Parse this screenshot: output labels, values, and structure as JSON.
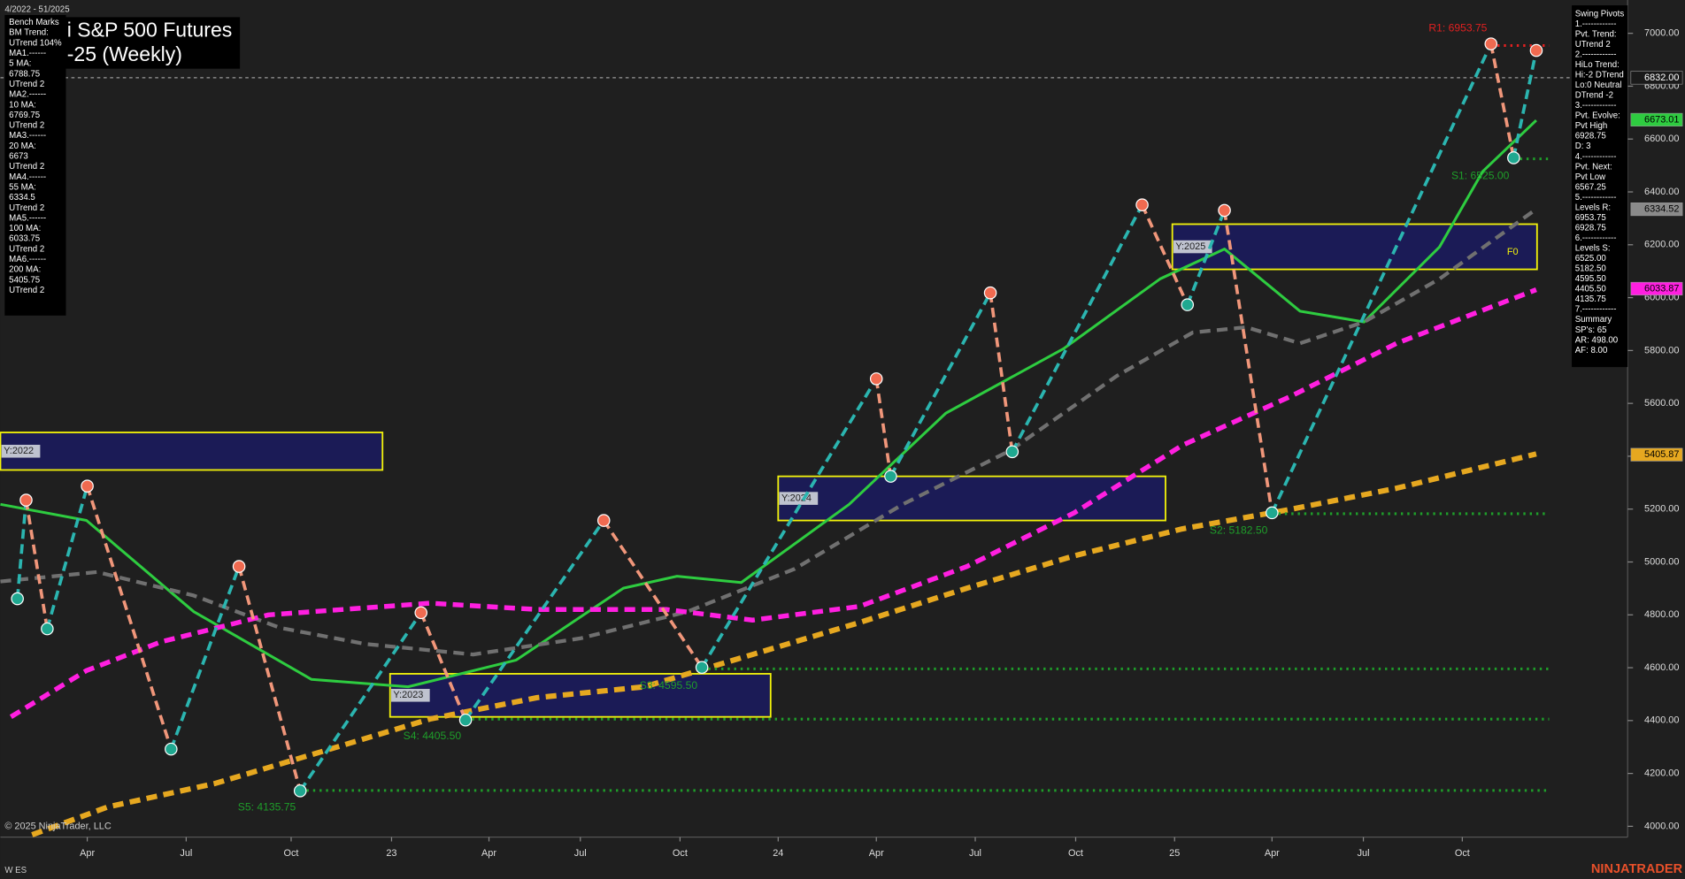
{
  "chart_data": {
    "type": "line",
    "title": "i S&P 500 Futures",
    "subtitle": "-25 (Weekly)",
    "date_range": "4/2022 - 51/2025",
    "xlim": [
      1.5,
      217
    ],
    "xticks": [
      {
        "value": 13,
        "label": "Apr"
      },
      {
        "value": 26.1,
        "label": "Jul"
      },
      {
        "value": 40,
        "label": "Oct"
      },
      {
        "value": 53.3,
        "label": "23"
      },
      {
        "value": 66.2,
        "label": "Apr"
      },
      {
        "value": 78.3,
        "label": "Jul"
      },
      {
        "value": 91.5,
        "label": "Oct"
      },
      {
        "value": 104.5,
        "label": "24"
      },
      {
        "value": 117.5,
        "label": "Apr"
      },
      {
        "value": 130.6,
        "label": "Jul"
      },
      {
        "value": 143.9,
        "label": "Oct"
      },
      {
        "value": 157,
        "label": "25"
      },
      {
        "value": 169.9,
        "label": "Apr"
      },
      {
        "value": 182,
        "label": "Jul"
      },
      {
        "value": 195.1,
        "label": "Oct"
      }
    ],
    "ylim": [
      3959,
      7126
    ],
    "yticks": [
      {
        "value": 4000,
        "label": "4000.00"
      },
      {
        "value": 4200,
        "label": "4200.00"
      },
      {
        "value": 4400,
        "label": "4400.00"
      },
      {
        "value": 4600,
        "label": "4600.00"
      },
      {
        "value": 4800,
        "label": "4800.00"
      },
      {
        "value": 5000,
        "label": "5000.00"
      },
      {
        "value": 5200,
        "label": "5200.00"
      },
      {
        "value": 5400,
        "label": "5400.00"
      },
      {
        "value": 5600,
        "label": "5600.00"
      },
      {
        "value": 5800,
        "label": "5800.00"
      },
      {
        "value": 6000,
        "label": "6000.00"
      },
      {
        "value": 6200,
        "label": "6200.00"
      },
      {
        "value": 6400,
        "label": "6400.00"
      },
      {
        "value": 6600,
        "label": "6600.00"
      },
      {
        "value": 6800,
        "label": "6800.00"
      },
      {
        "value": 7000,
        "label": "7000.00"
      }
    ],
    "zigzag": {
      "up_color": "#2bb5b0",
      "down_color": "#f0967a",
      "high_color": "#f06a50",
      "low_color": "#1fa890",
      "x": [
        3.75,
        4.9,
        7.7,
        13,
        24.1,
        33.1,
        41.2,
        57.2,
        63.1,
        81.4,
        94.4,
        117.5,
        119.4,
        132.6,
        135.5,
        152.7,
        158.7,
        163.6,
        169.9,
        198.9,
        201.9,
        204.9
      ],
      "values": [
        4861,
        5234,
        4747,
        5287,
        4292,
        4983,
        4134,
        4808,
        4402,
        5157,
        4601,
        5693,
        5324,
        6018,
        5417,
        6351,
        5973,
        6330,
        5186,
        6960,
        6529,
        6935
      ]
    },
    "series": [
      {
        "color": "#2ecc40",
        "dash": false,
        "width": 2.5,
        "x": [
          1.5,
          12.9,
          27.1,
          42.7,
          55.5,
          69.8,
          84.0,
          91.1,
          99.6,
          113.9,
          126.7,
          142.3,
          155.1,
          163.6,
          173.6,
          182.1,
          192.1,
          197.8,
          204.9
        ],
        "values": [
          5218,
          5157,
          4812,
          4556,
          4528,
          4629,
          4901,
          4946,
          4922,
          5218,
          5563,
          5807,
          6071,
          6184,
          5949,
          5908,
          6192,
          6477,
          6671
        ]
      },
      {
        "color": "#707070",
        "dash": true,
        "width": 3.5,
        "x": [
          1.5,
          14.3,
          27.1,
          38.5,
          49.8,
          64.1,
          78.3,
          92.5,
          106.7,
          121.0,
          135.2,
          149.4,
          159.4,
          166.5,
          173.6,
          182.1,
          192.1,
          204.9
        ],
        "values": [
          4926,
          4962,
          4873,
          4751,
          4690,
          4650,
          4711,
          4812,
          4974,
          5218,
          5421,
          5705,
          5868,
          5888,
          5827,
          5908,
          6071,
          6335
        ]
      },
      {
        "color": "#ff1fe0",
        "dash": true,
        "width": 4.5,
        "x": [
          2.9,
          12.9,
          22.8,
          37.0,
          58.4,
          72.6,
          89.7,
          101.1,
          115.3,
          129.5,
          143.7,
          158.0,
          172.2,
          186.4,
          204.9
        ],
        "values": [
          4414,
          4589,
          4698,
          4800,
          4844,
          4820,
          4820,
          4780,
          4832,
          4983,
          5186,
          5441,
          5624,
          5827,
          6030
        ]
      },
      {
        "color": "#e6a820",
        "dash": true,
        "width": 5,
        "x": [
          5.7,
          15.7,
          29.9,
          44.2,
          58.4,
          72.6,
          86.8,
          101.1,
          115.3,
          129.5,
          143.7,
          158.0,
          172.2,
          186.4,
          204.9
        ],
        "values": [
          3968,
          4073,
          4162,
          4284,
          4406,
          4487,
          4528,
          4650,
          4771,
          4901,
          5023,
          5125,
          5198,
          5279,
          5409
        ]
      }
    ],
    "levels": [
      {
        "label": "R1: 6953.75",
        "value": 6953.75,
        "x_start": 198.9,
        "color": "#e02020"
      },
      {
        "label": "S1: 6525.00",
        "value": 6525,
        "x_start": 201.9,
        "color": "#1f9e2a"
      },
      {
        "label": "S2: 5182.50",
        "value": 5182.5,
        "x_start": 169.9,
        "color": "#1f9e2a"
      },
      {
        "label": "S3: 4595.50",
        "value": 4595.5,
        "x_start": 94.4,
        "color": "#1f9e2a"
      },
      {
        "label": "S4: 4405.50",
        "value": 4405.5,
        "x_start": 63.1,
        "color": "#1f9e2a"
      },
      {
        "label": "S5: 4135.75",
        "value": 4135.75,
        "x_start": 41.2,
        "color": "#1f9e2a"
      }
    ],
    "year_boxes": [
      {
        "label": "Y:2022",
        "x": [
          1.5,
          52.1
        ],
        "y": [
          5348,
          5490
        ]
      },
      {
        "label": "Y:2023",
        "x": [
          53.1,
          103.5
        ],
        "y": [
          4414,
          4577
        ]
      },
      {
        "label": "Y:2024",
        "x": [
          104.5,
          155.8
        ],
        "y": [
          5157,
          5324
        ]
      },
      {
        "label": "Y:2025",
        "x": [
          156.7,
          205.0
        ],
        "y": [
          6107,
          6278
        ]
      }
    ],
    "f0_label": "F0",
    "price_tags": [
      {
        "value": 6832,
        "label": "6832.00",
        "color": "#1a1a1a",
        "text_color": "#ffffff"
      },
      {
        "value": 6673.01,
        "label": "6673.01",
        "color": "#2ecc40",
        "text_color": "#000000"
      },
      {
        "value": 6334.52,
        "label": "6334.52",
        "color": "#8a8a8a",
        "text_color": "#000000"
      },
      {
        "value": 6033.87,
        "label": "6033.87",
        "color": "#ff1fe0",
        "text_color": "#000000"
      },
      {
        "value": 5405.87,
        "label": "5405.87",
        "color": "#e6a820",
        "text_color": "#000000"
      }
    ],
    "left_panel": [
      "Bench Marks",
      "BM Trend:",
      "UTrend 104%",
      "MA1.------",
      "5 MA:",
      "6788.75",
      "UTrend 2",
      "MA2.------",
      "10 MA:",
      "6769.75",
      "UTrend 2",
      "MA3.------",
      "20 MA:",
      "6673",
      "UTrend 2",
      "MA4.------",
      "55 MA:",
      "6334.5",
      "UTrend 2",
      "MA5.------",
      "100 MA:",
      "6033.75",
      "UTrend 2",
      "MA6.------",
      "200 MA:",
      "5405.75",
      "UTrend 2"
    ],
    "right_panel": [
      "Swing Pivots",
      "1.------------",
      "Pvt. Trend:",
      "UTrend 2",
      "2.------------",
      "HiLo Trend:",
      "Hi:-2 DTrend",
      "Lo:0 Neutral",
      "DTrend -2",
      "3.------------",
      "Pvt. Evolve:",
      "Pvt High",
      "6928.75",
      "D: 3",
      "4.------------",
      "Pvt. Next:",
      "Pvt Low",
      "6567.25",
      "5.------------",
      "Levels R:",
      "6953.75",
      "6928.75",
      "6.------------",
      "Levels S:",
      "6525.00",
      "5182.50",
      "4595.50",
      "4405.50",
      "4135.75",
      "7.------------",
      "Summary",
      "SP's: 65",
      "AR: 498.00",
      "AF: 8.00"
    ],
    "copyright": "© 2025 NinjaTrader, LLC",
    "instrument": "W ES",
    "brand": "NINJATRADER"
  }
}
